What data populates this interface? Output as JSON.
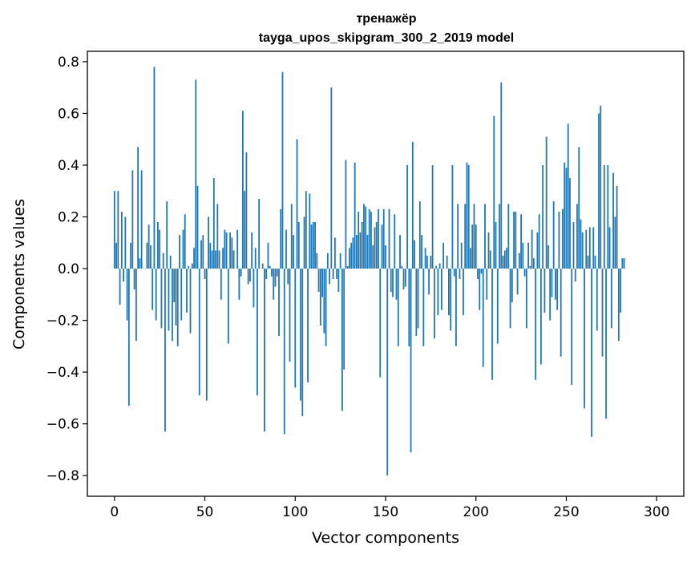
{
  "chart_data": {
    "type": "bar",
    "title": "тренажёр",
    "subtitle": "tayga_upos_skipgram_300_2_2019 model",
    "xlabel": "Vector components",
    "ylabel": "Components values",
    "xlim": [
      -15,
      315
    ],
    "ylim": [
      -0.88,
      0.84
    ],
    "xticks": [
      0,
      50,
      100,
      150,
      200,
      250,
      300
    ],
    "xtick_labels": [
      "0",
      "50",
      "100",
      "150",
      "200",
      "250",
      "300"
    ],
    "yticks": [
      0.8,
      0.6,
      0.4,
      0.2,
      0.0,
      -0.2,
      -0.4,
      -0.6,
      -0.8
    ],
    "ytick_labels": [
      "0.8",
      "0.6",
      "0.4",
      "0.2",
      "0.0",
      "−0.2",
      "−0.4",
      "−0.6",
      "−0.8"
    ],
    "grid": false,
    "legend": false,
    "bar_color": "#1f77b4",
    "series": [
      {
        "values": [
          0.3,
          0.1,
          0.3,
          -0.14,
          0.22,
          -0.05,
          0.2,
          -0.2,
          -0.53,
          0.1,
          0.38,
          -0.08,
          -0.28,
          0.47,
          0.04,
          0.38,
          0.0,
          0.0,
          0.1,
          0.17,
          0.09,
          -0.16,
          0.78,
          -0.2,
          0.18,
          0.15,
          -0.23,
          0.06,
          -0.63,
          0.26,
          -0.24,
          0.05,
          -0.28,
          -0.13,
          -0.22,
          -0.3,
          0.13,
          -0.2,
          0.15,
          0.21,
          -0.17,
          0.01,
          -0.25,
          0.02,
          0.08,
          0.73,
          0.32,
          -0.49,
          0.11,
          0.13,
          -0.04,
          -0.51,
          0.2,
          0.1,
          0.07,
          0.35,
          0.07,
          0.25,
          0.07,
          -0.12,
          0.08,
          0.15,
          0.14,
          -0.29,
          0.14,
          0.12,
          0.07,
          0.0,
          0.15,
          -0.12,
          -0.03,
          0.61,
          0.3,
          0.45,
          -0.06,
          -0.05,
          0.14,
          -0.15,
          0.08,
          -0.49,
          0.27,
          0.0,
          0.02,
          -0.63,
          -0.04,
          0.1,
          0.01,
          -0.03,
          -0.12,
          -0.07,
          -0.03,
          -0.26,
          0.23,
          0.76,
          -0.64,
          0.15,
          -0.06,
          -0.36,
          0.25,
          0.13,
          -0.46,
          0.5,
          0.18,
          -0.51,
          -0.57,
          0.2,
          0.3,
          -0.44,
          0.29,
          0.17,
          0.18,
          0.18,
          0.06,
          -0.09,
          -0.22,
          -0.11,
          -0.25,
          -0.3,
          0.06,
          -0.06,
          0.7,
          -0.04,
          0.12,
          -0.04,
          -0.09,
          0.06,
          -0.55,
          -0.39,
          0.42,
          0.01,
          0.08,
          0.1,
          0.12,
          0.41,
          0.13,
          0.22,
          0.14,
          0.18,
          0.25,
          0.24,
          0.13,
          0.23,
          0.22,
          0.09,
          0.16,
          0.18,
          0.23,
          -0.42,
          0.17,
          0.23,
          0.09,
          -0.8,
          0.23,
          -0.09,
          -0.11,
          0.21,
          -0.12,
          -0.3,
          0.13,
          0.01,
          -0.08,
          -0.07,
          0.4,
          -0.3,
          -0.71,
          0.49,
          0.11,
          -0.26,
          -0.23,
          0.26,
          0.13,
          -0.3,
          0.08,
          0.05,
          -0.1,
          0.05,
          0.4,
          -0.27,
          0.01,
          -0.18,
          0.02,
          -0.16,
          0.1,
          0.0,
          0.05,
          -0.18,
          -0.24,
          0.4,
          -0.03,
          -0.3,
          0.25,
          -0.04,
          0.1,
          -0.18,
          0.25,
          0.41,
          0.4,
          0.08,
          0.17,
          0.25,
          0.17,
          -0.04,
          -0.16,
          -0.02,
          -0.38,
          0.25,
          -0.12,
          0.14,
          0.07,
          -0.43,
          0.59,
          0.18,
          -0.29,
          0.25,
          0.72,
          0.05,
          0.07,
          0.08,
          0.25,
          -0.23,
          -0.13,
          0.22,
          0.22,
          -0.1,
          0.06,
          0.21,
          0.1,
          -0.03,
          -0.23,
          0.1,
          0.01,
          0.15,
          0.04,
          -0.43,
          0.14,
          0.21,
          -0.37,
          0.4,
          -0.17,
          0.51,
          0.09,
          -0.2,
          -0.11,
          0.26,
          -0.12,
          -0.16,
          0.22,
          -0.34,
          0.23,
          0.41,
          0.39,
          0.56,
          0.35,
          -0.45,
          0.18,
          -0.05,
          0.25,
          0.47,
          0.19,
          0.14,
          -0.54,
          0.15,
          0.05,
          0.16,
          -0.65,
          0.16,
          0.05,
          -0.24,
          0.6,
          0.63,
          -0.34,
          0.4,
          -0.58,
          0.4,
          0.16,
          -0.23,
          0.37,
          0.2,
          0.32,
          -0.28,
          -0.17,
          0.04,
          0.04
        ]
      }
    ]
  }
}
